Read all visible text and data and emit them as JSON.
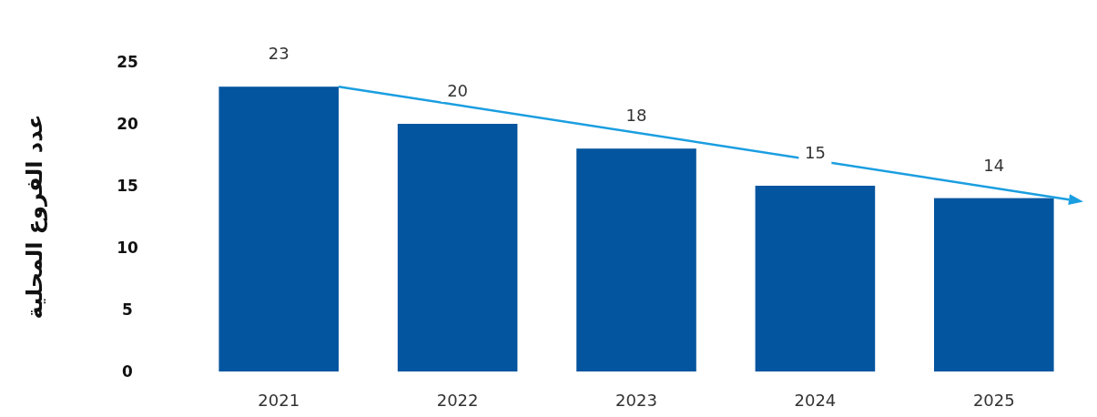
{
  "chart_data": {
    "type": "bar",
    "ylabel": "عدد الفروع المحلية",
    "categories": [
      "2021",
      "2022",
      "2023",
      "2024",
      "2025"
    ],
    "values": [
      23,
      20,
      18,
      15,
      14
    ],
    "color": "#04559f",
    "data_labels": true,
    "ylim": [
      0,
      25
    ],
    "yticks": [
      0,
      5,
      10,
      15,
      20,
      25
    ]
  }
}
